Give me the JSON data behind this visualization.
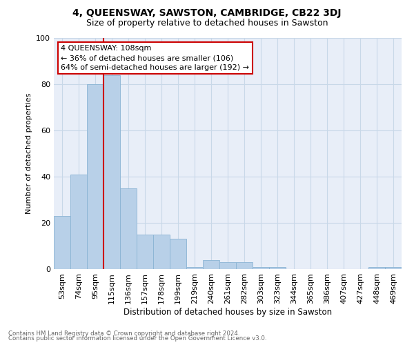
{
  "title": "4, QUEENSWAY, SAWSTON, CAMBRIDGE, CB22 3DJ",
  "subtitle": "Size of property relative to detached houses in Sawston",
  "xlabel": "Distribution of detached houses by size in Sawston",
  "ylabel": "Number of detached properties",
  "footnote1": "Contains HM Land Registry data © Crown copyright and database right 2024.",
  "footnote2": "Contains public sector information licensed under the Open Government Licence v3.0.",
  "categories": [
    "53sqm",
    "74sqm",
    "95sqm",
    "115sqm",
    "136sqm",
    "157sqm",
    "178sqm",
    "199sqm",
    "219sqm",
    "240sqm",
    "261sqm",
    "282sqm",
    "303sqm",
    "323sqm",
    "344sqm",
    "365sqm",
    "386sqm",
    "407sqm",
    "427sqm",
    "448sqm",
    "469sqm"
  ],
  "values": [
    23,
    41,
    80,
    84,
    35,
    15,
    15,
    13,
    1,
    4,
    3,
    3,
    1,
    1,
    0,
    0,
    0,
    0,
    0,
    1,
    1
  ],
  "bar_color": "#b8d0e8",
  "bar_edge_color": "#8ab4d4",
  "grid_color": "#c8d8e8",
  "background_color": "#e8eef8",
  "vline_color": "#cc0000",
  "vline_x": 2.5,
  "annotation_text": "4 QUEENSWAY: 108sqm\n← 36% of detached houses are smaller (106)\n64% of semi-detached houses are larger (192) →",
  "annotation_box_color": "#ffffff",
  "annotation_box_edge": "#cc0000",
  "ylim": [
    0,
    100
  ],
  "yticks": [
    0,
    20,
    40,
    60,
    80,
    100
  ],
  "title_fontsize": 10,
  "subtitle_fontsize": 9
}
